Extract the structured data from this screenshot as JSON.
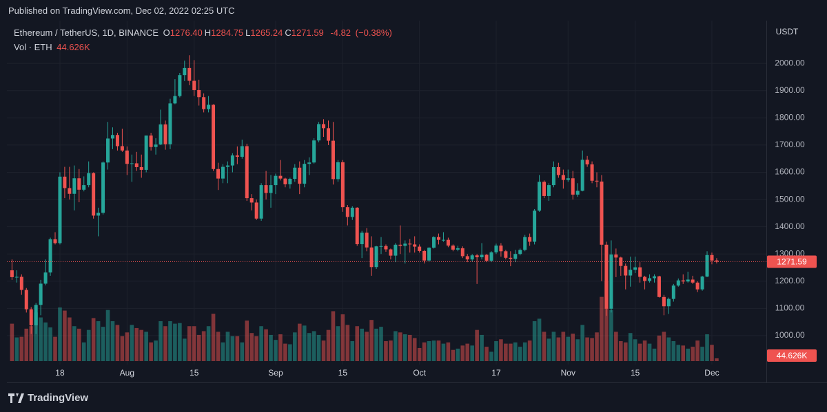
{
  "header": {
    "title": "Published on TradingView.com, Dec 02, 2022 02:25 UTC"
  },
  "footer": {
    "brand": "TradingView"
  },
  "chart_data": {
    "type": "candlestick",
    "title": "Ethereum / TetherUS, 1D, BINANCE",
    "y_axis_label": "USDT",
    "volume_title": "Vol · ETH",
    "legend": [
      {
        "name": "O",
        "value": 1276.4,
        "label": "1276.40"
      },
      {
        "name": "H",
        "value": 1284.75,
        "label": "1284.75"
      },
      {
        "name": "L",
        "value": 1265.24,
        "label": "1265.24"
      },
      {
        "name": "C",
        "value": 1271.59,
        "label": "1271.59"
      }
    ],
    "change": -4.82,
    "change_percent": {
      "value": -0.38,
      "label": "(−0.38%)"
    },
    "up_color": "#26a69a",
    "down_color": "#ef5350",
    "grid": true,
    "ylim": [
      899,
      2157
    ],
    "yticks": [
      {
        "value": 1000,
        "label": "1000.00"
      },
      {
        "value": 1100,
        "label": "1100.00"
      },
      {
        "value": 1200,
        "label": "1200.00"
      },
      {
        "value": 1300,
        "label": "1300.00"
      },
      {
        "value": 1400,
        "label": "1400.00"
      },
      {
        "value": 1500,
        "label": "1500.00"
      },
      {
        "value": 1600,
        "label": "1600.00"
      },
      {
        "value": 1700,
        "label": "1700.00"
      },
      {
        "value": 1800,
        "label": "1800.00"
      },
      {
        "value": 1900,
        "label": "1900.00"
      },
      {
        "value": 2000,
        "label": "2000.00"
      }
    ],
    "volume_ylim": [
      0,
      1500000
    ],
    "xticks": [
      {
        "value": "Jul 18",
        "label": "18"
      },
      {
        "value": "Aug 1",
        "label": "Aug"
      },
      {
        "value": "Aug 15",
        "label": "15"
      },
      {
        "value": "Sep 1",
        "label": "Sep"
      },
      {
        "value": "Sep 15",
        "label": "15"
      },
      {
        "value": "Oct 1",
        "label": "Oct"
      },
      {
        "value": "Oct 17",
        "label": "17"
      },
      {
        "value": "Nov 1",
        "label": "Nov"
      },
      {
        "value": "Nov 15",
        "label": "15"
      },
      {
        "value": "Dec 1",
        "label": "Dec"
      }
    ],
    "x": [
      "Jul 8",
      "Jul 9",
      "Jul 10",
      "Jul 11",
      "Jul 12",
      "Jul 13",
      "Jul 14",
      "Jul 15",
      "Jul 16",
      "Jul 17",
      "Jul 18",
      "Jul 19",
      "Jul 20",
      "Jul 21",
      "Jul 22",
      "Jul 23",
      "Jul 24",
      "Jul 25",
      "Jul 26",
      "Jul 27",
      "Jul 28",
      "Jul 29",
      "Jul 30",
      "Jul 31",
      "Aug 1",
      "Aug 2",
      "Aug 3",
      "Aug 4",
      "Aug 5",
      "Aug 6",
      "Aug 7",
      "Aug 8",
      "Aug 9",
      "Aug 10",
      "Aug 11",
      "Aug 12",
      "Aug 13",
      "Aug 14",
      "Aug 15",
      "Aug 16",
      "Aug 17",
      "Aug 18",
      "Aug 19",
      "Aug 20",
      "Aug 21",
      "Aug 22",
      "Aug 23",
      "Aug 24",
      "Aug 25",
      "Aug 26",
      "Aug 27",
      "Aug 28",
      "Aug 29",
      "Aug 30",
      "Aug 31",
      "Sep 1",
      "Sep 2",
      "Sep 3",
      "Sep 4",
      "Sep 5",
      "Sep 6",
      "Sep 7",
      "Sep 8",
      "Sep 9",
      "Sep 10",
      "Sep 11",
      "Sep 12",
      "Sep 13",
      "Sep 14",
      "Sep 15",
      "Sep 16",
      "Sep 17",
      "Sep 18",
      "Sep 19",
      "Sep 20",
      "Sep 21",
      "Sep 22",
      "Sep 23",
      "Sep 24",
      "Sep 25",
      "Sep 26",
      "Sep 27",
      "Sep 28",
      "Sep 29",
      "Sep 30",
      "Oct 1",
      "Oct 2",
      "Oct 3",
      "Oct 4",
      "Oct 5",
      "Oct 6",
      "Oct 7",
      "Oct 8",
      "Oct 9",
      "Oct 10",
      "Oct 11",
      "Oct 12",
      "Oct 13",
      "Oct 14",
      "Oct 15",
      "Oct 16",
      "Oct 17",
      "Oct 18",
      "Oct 19",
      "Oct 20",
      "Oct 21",
      "Oct 22",
      "Oct 23",
      "Oct 24",
      "Oct 25",
      "Oct 26",
      "Oct 27",
      "Oct 28",
      "Oct 29",
      "Oct 30",
      "Oct 31",
      "Nov 1",
      "Nov 2",
      "Nov 3",
      "Nov 4",
      "Nov 5",
      "Nov 6",
      "Nov 7",
      "Nov 8",
      "Nov 9",
      "Nov 10",
      "Nov 11",
      "Nov 12",
      "Nov 13",
      "Nov 14",
      "Nov 15",
      "Nov 16",
      "Nov 17",
      "Nov 18",
      "Nov 19",
      "Nov 20",
      "Nov 21",
      "Nov 22",
      "Nov 23",
      "Nov 24",
      "Nov 25",
      "Nov 26",
      "Nov 27",
      "Nov 28",
      "Nov 29",
      "Nov 30",
      "Dec 1",
      "Dec 2"
    ],
    "open": [
      1240,
      1215,
      1216,
      1168,
      1097,
      1038,
      1113,
      1191,
      1232,
      1354,
      1340,
      1584,
      1542,
      1521,
      1578,
      1536,
      1553,
      1597,
      1441,
      1451,
      1636,
      1724,
      1737,
      1696,
      1680,
      1631,
      1633,
      1619,
      1609,
      1735,
      1693,
      1702,
      1776,
      1703,
      1853,
      1880,
      1957,
      1983,
      1936,
      1902,
      1876,
      1832,
      1848,
      1612,
      1577,
      1620,
      1625,
      1662,
      1657,
      1696,
      1505,
      1489,
      1430,
      1553,
      1524,
      1553,
      1587,
      1577,
      1556,
      1576,
      1617,
      1558,
      1631,
      1636,
      1717,
      1777,
      1762,
      1716,
      1575,
      1637,
      1472,
      1436,
      1470,
      1336,
      1378,
      1324,
      1252,
      1328,
      1329,
      1317,
      1294,
      1334,
      1330,
      1338,
      1335,
      1327,
      1311,
      1276,
      1323,
      1362,
      1352,
      1352,
      1331,
      1316,
      1321,
      1292,
      1280,
      1295,
      1288,
      1297,
      1275,
      1306,
      1331,
      1310,
      1286,
      1282,
      1300,
      1315,
      1362,
      1345,
      1459,
      1565,
      1513,
      1553,
      1619,
      1590,
      1572,
      1578,
      1518,
      1532,
      1646,
      1629,
      1569,
      1566,
      1334,
      1099,
      1298,
      1287,
      1256,
      1221,
      1242,
      1251,
      1216,
      1201,
      1211,
      1218,
      1142,
      1108,
      1135,
      1184,
      1203,
      1199,
      1206,
      1195,
      1170,
      1217,
      1296,
      1276.4
    ],
    "high": [
      1280,
      1240,
      1225,
      1175,
      1105,
      1120,
      1205,
      1280,
      1360,
      1380,
      1600,
      1620,
      1620,
      1625,
      1612,
      1585,
      1640,
      1600,
      1470,
      1640,
      1785,
      1765,
      1745,
      1760,
      1695,
      1665,
      1675,
      1665,
      1735,
      1745,
      1725,
      1830,
      1790,
      1870,
      1942,
      1965,
      2010,
      2030,
      2012,
      1940,
      1890,
      1880,
      1850,
      1635,
      1630,
      1640,
      1670,
      1695,
      1720,
      1705,
      1520,
      1500,
      1560,
      1605,
      1590,
      1595,
      1645,
      1580,
      1580,
      1630,
      1640,
      1645,
      1655,
      1725,
      1785,
      1795,
      1790,
      1785,
      1645,
      1645,
      1480,
      1475,
      1472,
      1385,
      1395,
      1365,
      1330,
      1362,
      1335,
      1320,
      1340,
      1405,
      1350,
      1355,
      1365,
      1335,
      1315,
      1325,
      1365,
      1375,
      1380,
      1360,
      1335,
      1330,
      1328,
      1300,
      1300,
      1300,
      1340,
      1300,
      1310,
      1338,
      1340,
      1315,
      1310,
      1315,
      1320,
      1370,
      1375,
      1465,
      1590,
      1570,
      1560,
      1640,
      1635,
      1610,
      1610,
      1605,
      1560,
      1680,
      1660,
      1640,
      1600,
      1590,
      1345,
      1350,
      1320,
      1290,
      1265,
      1290,
      1290,
      1270,
      1220,
      1225,
      1225,
      1220,
      1150,
      1140,
      1190,
      1210,
      1225,
      1235,
      1220,
      1200,
      1220,
      1310,
      1305,
      1284.75
    ],
    "low": [
      1205,
      1195,
      1150,
      1085,
      1006,
      1006,
      1075,
      1185,
      1220,
      1335,
      1335,
      1505,
      1500,
      1460,
      1490,
      1530,
      1545,
      1430,
      1365,
      1445,
      1610,
      1685,
      1680,
      1675,
      1590,
      1565,
      1605,
      1580,
      1600,
      1680,
      1665,
      1700,
      1683,
      1685,
      1850,
      1875,
      1935,
      1920,
      1880,
      1845,
      1820,
      1820,
      1605,
      1535,
      1560,
      1560,
      1600,
      1630,
      1650,
      1495,
      1460,
      1425,
      1422,
      1500,
      1470,
      1520,
      1570,
      1545,
      1540,
      1565,
      1520,
      1545,
      1590,
      1632,
      1710,
      1730,
      1700,
      1555,
      1565,
      1455,
      1405,
      1425,
      1330,
      1285,
      1310,
      1220,
      1245,
      1300,
      1308,
      1280,
      1270,
      1300,
      1265,
      1305,
      1305,
      1305,
      1265,
      1270,
      1320,
      1335,
      1345,
      1325,
      1310,
      1310,
      1285,
      1270,
      1272,
      1190,
      1280,
      1270,
      1270,
      1300,
      1290,
      1280,
      1255,
      1270,
      1295,
      1310,
      1330,
      1335,
      1455,
      1505,
      1495,
      1545,
      1580,
      1540,
      1565,
      1500,
      1510,
      1530,
      1620,
      1560,
      1545,
      1200,
      1073,
      1085,
      1215,
      1220,
      1170,
      1180,
      1230,
      1195,
      1170,
      1195,
      1195,
      1140,
      1075,
      1080,
      1125,
      1180,
      1190,
      1195,
      1190,
      1160,
      1165,
      1215,
      1262,
      1265.24
    ],
    "close": [
      1215,
      1216,
      1168,
      1097,
      1038,
      1113,
      1191,
      1232,
      1354,
      1340,
      1584,
      1542,
      1521,
      1578,
      1536,
      1553,
      1597,
      1441,
      1451,
      1636,
      1724,
      1737,
      1696,
      1680,
      1631,
      1633,
      1619,
      1609,
      1735,
      1693,
      1702,
      1776,
      1703,
      1853,
      1880,
      1957,
      1983,
      1936,
      1902,
      1876,
      1832,
      1848,
      1612,
      1577,
      1620,
      1625,
      1662,
      1657,
      1696,
      1505,
      1489,
      1430,
      1553,
      1524,
      1553,
      1587,
      1577,
      1556,
      1576,
      1617,
      1558,
      1631,
      1636,
      1717,
      1777,
      1762,
      1716,
      1575,
      1637,
      1472,
      1436,
      1470,
      1336,
      1378,
      1324,
      1252,
      1328,
      1329,
      1317,
      1294,
      1334,
      1330,
      1338,
      1335,
      1327,
      1311,
      1276,
      1323,
      1362,
      1352,
      1352,
      1331,
      1316,
      1321,
      1292,
      1280,
      1295,
      1288,
      1297,
      1275,
      1306,
      1331,
      1310,
      1286,
      1282,
      1300,
      1315,
      1362,
      1345,
      1459,
      1565,
      1513,
      1553,
      1619,
      1590,
      1572,
      1578,
      1518,
      1532,
      1646,
      1629,
      1569,
      1566,
      1334,
      1099,
      1298,
      1287,
      1256,
      1221,
      1242,
      1251,
      1216,
      1201,
      1211,
      1218,
      1142,
      1108,
      1135,
      1184,
      1203,
      1199,
      1206,
      1195,
      1170,
      1217,
      1296,
      1276,
      1271.59
    ],
    "volume": [
      600000,
      380000,
      390000,
      520000,
      560000,
      780000,
      700000,
      620000,
      540000,
      390000,
      860000,
      810000,
      700000,
      560000,
      520000,
      300000,
      500000,
      690000,
      640000,
      550000,
      820000,
      640000,
      580000,
      400000,
      460000,
      580000,
      530000,
      500000,
      470000,
      300000,
      330000,
      640000,
      560000,
      640000,
      600000,
      610000,
      360000,
      560000,
      560000,
      420000,
      480000,
      560000,
      760000,
      470000,
      300000,
      470000,
      400000,
      400000,
      300000,
      650000,
      450000,
      400000,
      560000,
      510000,
      420000,
      340000,
      430000,
      280000,
      270000,
      460000,
      600000,
      570000,
      450000,
      480000,
      420000,
      330000,
      500000,
      800000,
      560000,
      750000,
      580000,
      320000,
      560000,
      520000,
      470000,
      660000,
      520000,
      550000,
      320000,
      330000,
      480000,
      460000,
      430000,
      420000,
      370000,
      210000,
      300000,
      320000,
      330000,
      330000,
      280000,
      300000,
      180000,
      200000,
      250000,
      280000,
      250000,
      500000,
      420000,
      230000,
      150000,
      320000,
      350000,
      280000,
      280000,
      300000,
      230000,
      300000,
      330000,
      640000,
      680000,
      470000,
      360000,
      470000,
      380000,
      470000,
      390000,
      440000,
      350000,
      580000,
      380000,
      370000,
      460000,
      1030000,
      1290000,
      820000,
      470000,
      320000,
      300000,
      450000,
      350000,
      280000,
      330000,
      280000,
      200000,
      410000,
      470000,
      380000,
      320000,
      260000,
      250000,
      200000,
      230000,
      330000,
      230000,
      430000,
      260000,
      44626
    ],
    "volume_last_label": "44.626K"
  }
}
